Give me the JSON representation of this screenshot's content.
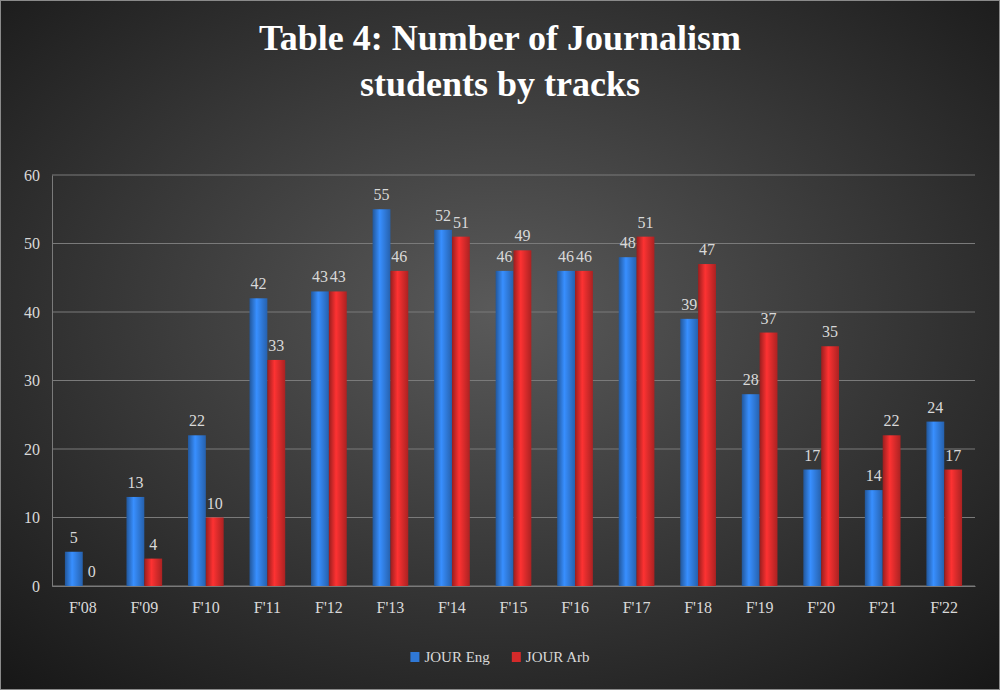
{
  "chart_data": {
    "type": "bar",
    "title": "Table 4: Number of Journalism\nstudents by tracks",
    "categories": [
      "F'08",
      "F'09",
      "F'10",
      "F'11",
      "F'12",
      "F'13",
      "F'14",
      "F'15",
      "F'16",
      "F'17",
      "F'18",
      "F'19",
      "F'20",
      "F'21",
      "F'22"
    ],
    "series": [
      {
        "name": "JOUR Eng",
        "color": "#2f78d6",
        "values": [
          5,
          13,
          22,
          42,
          43,
          55,
          52,
          46,
          46,
          48,
          39,
          28,
          17,
          14,
          24
        ]
      },
      {
        "name": "JOUR Arb",
        "color": "#d42a2a",
        "values": [
          0,
          4,
          10,
          33,
          43,
          46,
          51,
          49,
          46,
          51,
          47,
          37,
          35,
          22,
          17
        ]
      }
    ],
    "ylim": [
      0,
      60
    ],
    "yticks": [
      0,
      10,
      20,
      30,
      40,
      50,
      60
    ],
    "grid": true,
    "data_labels": true,
    "legend": "bottom"
  }
}
